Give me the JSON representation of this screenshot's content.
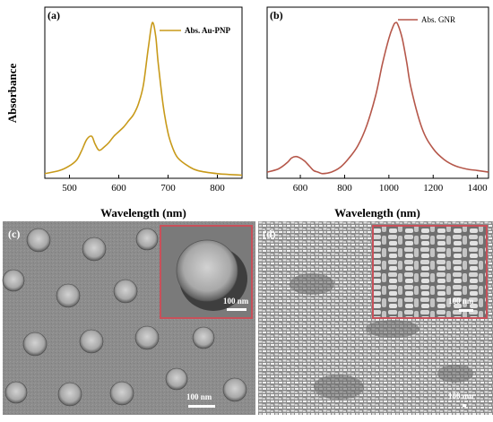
{
  "panels": {
    "a": {
      "label": "(a)",
      "legend": "Abs.  Au-PNP",
      "ylabel": "Absorbance",
      "xlabel": "Wavelength (nm)",
      "xticks": [
        "500",
        "600",
        "700",
        "800"
      ]
    },
    "b": {
      "label": "(b)",
      "legend": "Abs. GNR",
      "xlabel": "Wavelength (nm)",
      "xticks": [
        "600",
        "800",
        "1000",
        "1200",
        "1400"
      ]
    },
    "c": {
      "label": "(c)",
      "inset_scale": "100  nm",
      "main_scale": "100  nm"
    },
    "d": {
      "label": "(d)",
      "inset_scale": "100  nm",
      "main_scale": "100  nm"
    }
  },
  "colors": {
    "au_pnp": "#c89a1a",
    "gnr": "#b5574a",
    "inset_border": "#c8505a",
    "axis": "#000000"
  },
  "chart_data": [
    {
      "type": "line",
      "series": [
        {
          "name": "Abs.  Au-PNP",
          "x": [
            450,
            480,
            500,
            515,
            525,
            535,
            545,
            552,
            560,
            570,
            580,
            590,
            600,
            610,
            620,
            630,
            640,
            650,
            660,
            668,
            675,
            680,
            690,
            700,
            710,
            720,
            740,
            760,
            800,
            850
          ],
          "y": [
            0.03,
            0.05,
            0.08,
            0.12,
            0.18,
            0.25,
            0.27,
            0.22,
            0.18,
            0.2,
            0.23,
            0.27,
            0.3,
            0.33,
            0.37,
            0.41,
            0.48,
            0.6,
            0.84,
            1.0,
            0.91,
            0.74,
            0.47,
            0.29,
            0.19,
            0.13,
            0.08,
            0.05,
            0.03,
            0.02
          ]
        }
      ],
      "xlim": [
        450,
        850
      ],
      "ylim": [
        0,
        1.1
      ],
      "xticks": [
        500,
        600,
        700,
        800
      ],
      "xlabel": "Wavelength (nm)",
      "ylabel": "Absorbance",
      "legend": "top-right",
      "grid": false
    },
    {
      "type": "line",
      "series": [
        {
          "name": "Abs. GNR",
          "x": [
            450,
            500,
            540,
            560,
            580,
            600,
            620,
            640,
            660,
            680,
            700,
            740,
            780,
            820,
            860,
            900,
            940,
            970,
            1000,
            1020,
            1030,
            1040,
            1060,
            1080,
            1100,
            1150,
            1200,
            1250,
            1300,
            1350,
            1400,
            1450
          ],
          "y": [
            0.04,
            0.06,
            0.1,
            0.13,
            0.14,
            0.13,
            0.11,
            0.08,
            0.05,
            0.04,
            0.03,
            0.04,
            0.07,
            0.13,
            0.21,
            0.34,
            0.53,
            0.73,
            0.9,
            0.98,
            1.0,
            0.99,
            0.9,
            0.75,
            0.58,
            0.32,
            0.19,
            0.12,
            0.08,
            0.06,
            0.05,
            0.04
          ]
        }
      ],
      "xlim": [
        450,
        1450
      ],
      "ylim": [
        0,
        1.1
      ],
      "xticks": [
        600,
        800,
        1000,
        1200,
        1400
      ],
      "xlabel": "Wavelength (nm)",
      "legend": "top-right",
      "grid": false
    }
  ]
}
